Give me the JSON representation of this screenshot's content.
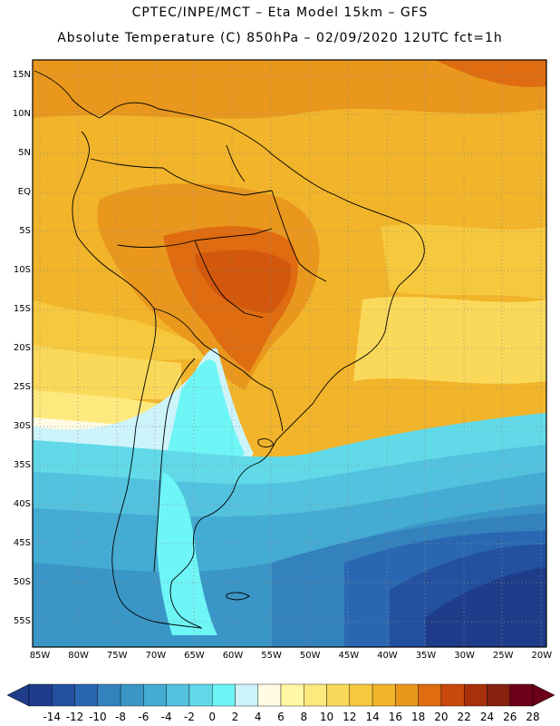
{
  "header": {
    "line1": "CPTEC/INPE/MCT –   Eta Model 15km – GFS",
    "line2": "Absolute Temperature (C) 850hPa – 02/09/2020 12UTC fct=1h"
  },
  "lat_labels": [
    "15N",
    "10N",
    "5N",
    "EQ",
    "5S",
    "10S",
    "15S",
    "20S",
    "25S",
    "30S",
    "35S",
    "40S",
    "45S",
    "50S",
    "55S"
  ],
  "lon_labels": [
    "85W",
    "80W",
    "75W",
    "70W",
    "65W",
    "60W",
    "55W",
    "50W",
    "45W",
    "40W",
    "35W",
    "30W",
    "25W",
    "20W"
  ],
  "colorbar": {
    "ticks": [
      "-14",
      "-12",
      "-10",
      "-8",
      "-6",
      "-4",
      "-2",
      "0",
      "2",
      "4",
      "6",
      "8",
      "10",
      "12",
      "14",
      "16",
      "18",
      "20",
      "22",
      "24",
      "26",
      "28"
    ],
    "colors": [
      "#1f3c8a",
      "#23509f",
      "#2a67b2",
      "#3381bd",
      "#3a96c6",
      "#44abd2",
      "#52c2de",
      "#61d9e8",
      "#6ef5f5",
      "#cdf3fb",
      "#fffbe4",
      "#fff7a3",
      "#fde97e",
      "#fad95a",
      "#f6c83d",
      "#f1b42a",
      "#e9971d",
      "#df6c10",
      "#c9480b",
      "#a8300a",
      "#86220f",
      "#6b0018"
    ]
  }
}
